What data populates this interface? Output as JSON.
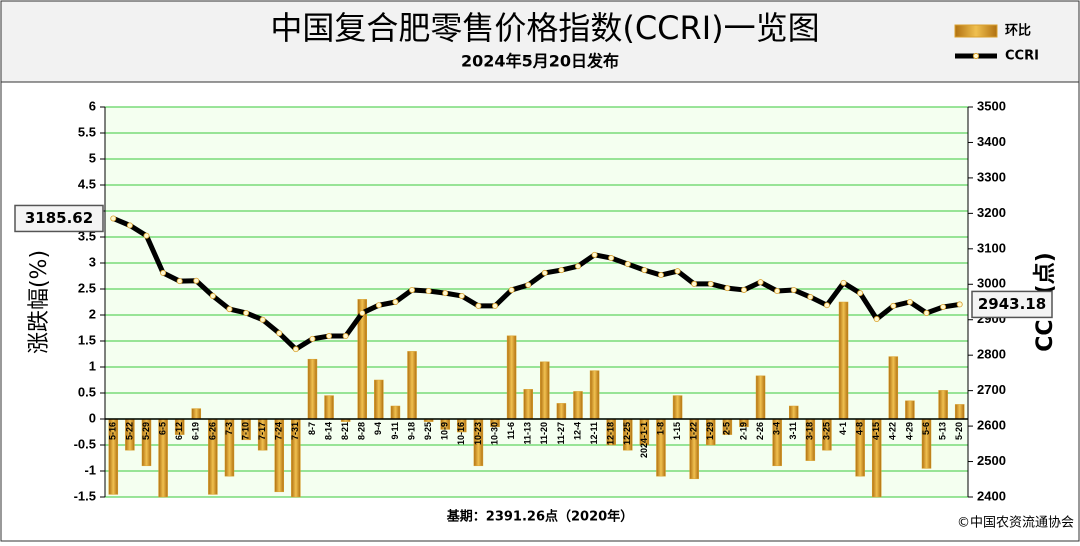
{
  "chart_data": {
    "type": "combo",
    "title": "中国复合肥零售价格指数(CCRI)一览图",
    "subtitle": "2024年5月20日发布",
    "ylabel": "涨跌幅(%)",
    "y2label": "CCRI(点)",
    "annotations": [
      "基期：2391.26点（2020年）",
      "©中国农资流通协会"
    ],
    "categories": [
      "5-16",
      "5-22",
      "5-29",
      "6-5",
      "6-12",
      "6-19",
      "6-26",
      "7-3",
      "7-10",
      "7-17",
      "7-24",
      "7-31",
      "8-7",
      "8-14",
      "8-21",
      "8-28",
      "9-4",
      "9-11",
      "9-18",
      "9-25",
      "10-9",
      "10-16",
      "10-23",
      "10-30",
      "11-6",
      "11-13",
      "11-20",
      "11-27",
      "12-4",
      "12-11",
      "12-18",
      "12-25",
      "2024-1-1",
      "1-8",
      "1-15",
      "1-22",
      "1-29",
      "2-5",
      "2-19",
      "2-26",
      "3-4",
      "3-11",
      "3-18",
      "3-25",
      "4-1",
      "4-8",
      "4-15",
      "4-22",
      "4-29",
      "5-6",
      "5-13",
      "5-20"
    ],
    "series": [
      {
        "name": "环比",
        "type": "bar",
        "color": "#d9a02e",
        "values": [
          -1.45,
          -0.6,
          -0.9,
          -1.5,
          -0.3,
          0.2,
          -1.45,
          -1.1,
          -0.4,
          -0.6,
          -1.4,
          -1.5,
          1.15,
          0.45,
          -0.05,
          2.3,
          0.75,
          0.25,
          1.3,
          -0.05,
          -0.2,
          -0.25,
          -0.9,
          -0.15,
          1.6,
          0.57,
          1.1,
          0.3,
          0.53,
          0.93,
          -0.5,
          -0.6,
          -0.5,
          -1.1,
          0.45,
          -1.15,
          -0.5,
          -0.3,
          -0.15,
          0.83,
          -0.9,
          0.25,
          -0.8,
          -0.6,
          2.25,
          -1.1,
          -1.5,
          1.2,
          0.35,
          -0.95,
          0.55,
          0.28
        ]
      },
      {
        "name": "CCRI",
        "type": "line",
        "axis": "y2",
        "color": "#000000",
        "values": [
          3185.62,
          3166,
          3137,
          3032,
          3009,
          3010,
          2967,
          2930,
          2919,
          2900,
          2862,
          2817,
          2846,
          2854,
          2854,
          2919,
          2941,
          2950,
          2984,
          2981,
          2975,
          2967,
          2939,
          2939,
          2984,
          2998,
          3032,
          3040,
          3051,
          3083,
          3074,
          3057,
          3040,
          3026,
          3037,
          3001,
          3001,
          2989,
          2984,
          3006,
          2981,
          2984,
          2964,
          2941,
          3004,
          2975,
          2902,
          2939,
          2950,
          2919,
          2936,
          2943.18
        ]
      }
    ],
    "ylim": [
      -1.5,
      6
    ],
    "yticks": [
      6,
      5.5,
      5,
      4.5,
      4,
      3.5,
      3,
      2.5,
      2,
      1.5,
      1,
      0.5,
      0,
      -0.5,
      -1,
      -1.5
    ],
    "y2lim": [
      2400,
      3500
    ],
    "y2ticks": [
      3500,
      3400,
      3300,
      3200,
      3100,
      3000,
      2900,
      2800,
      2700,
      2600,
      2500,
      2400
    ],
    "grid": true,
    "legend": "top-right"
  }
}
